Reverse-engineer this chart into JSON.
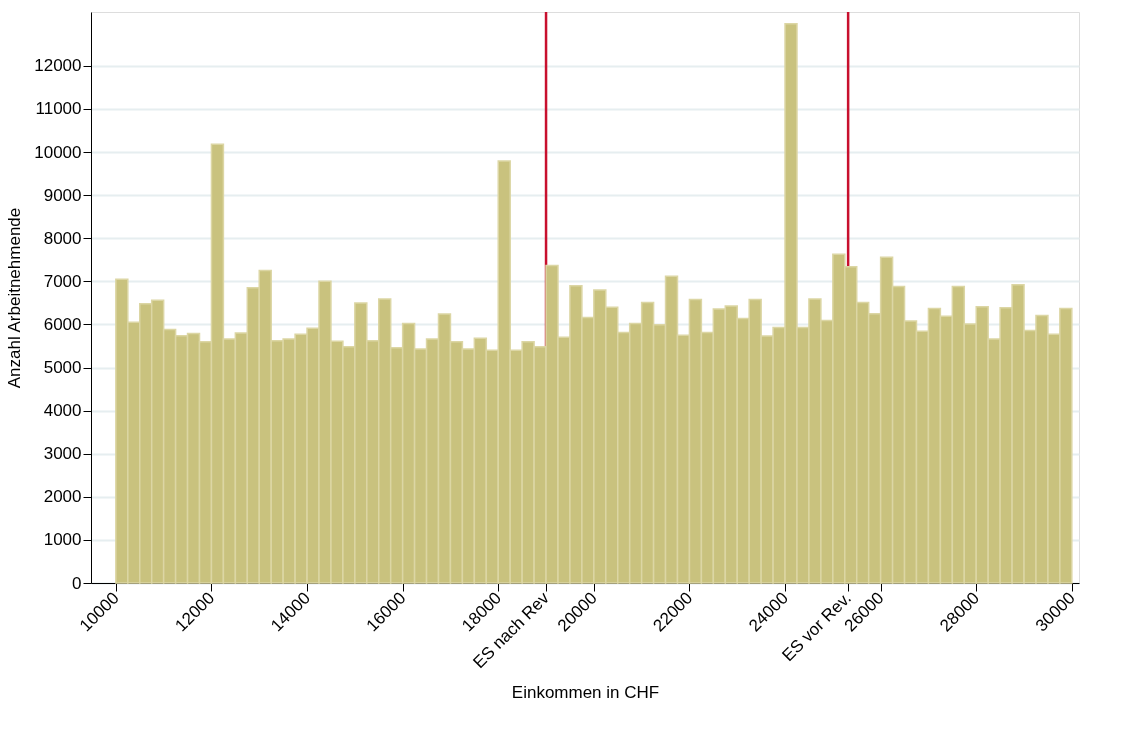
{
  "chart_data": {
    "type": "histogram",
    "xlabel": "Einkommen in CHF",
    "ylabel": "Anzahl Arbeitnehmende",
    "bins": [
      10000,
      10250,
      10500,
      10750,
      11000,
      11250,
      11500,
      11750,
      12000,
      12250,
      12500,
      12750,
      13000,
      13250,
      13500,
      13750,
      14000,
      14250,
      14500,
      14750,
      15000,
      15250,
      15500,
      15750,
      16000,
      16250,
      16500,
      16750,
      17000,
      17250,
      17500,
      17750,
      18000,
      18250,
      18500,
      18750,
      19000,
      19250,
      19500,
      19750,
      20000,
      20250,
      20500,
      20750,
      21000,
      21250,
      21500,
      21750,
      22000,
      22250,
      22500,
      22750,
      23000,
      23250,
      23500,
      23750,
      24000,
      24250,
      24500,
      24750,
      25000,
      25250,
      25500,
      25750,
      26000,
      26250,
      26500,
      26750,
      27000,
      27250,
      27500,
      27750,
      28000,
      28250,
      28500,
      28750,
      29000,
      29250,
      29500,
      29750,
      30000
    ],
    "values": [
      7050,
      6050,
      6480,
      6560,
      5880,
      5740,
      5790,
      5600,
      10180,
      5660,
      5800,
      6850,
      7250,
      5620,
      5660,
      5770,
      5910,
      7000,
      5610,
      5480,
      6500,
      5620,
      6590,
      5460,
      6020,
      5430,
      5660,
      6240,
      5600,
      5430,
      5680,
      5400,
      9790,
      5400,
      5600,
      5480,
      7370,
      5700,
      6900,
      6160,
      6800,
      6400,
      5810,
      6020,
      6510,
      5990,
      7120,
      5750,
      6580,
      5810,
      6360,
      6430,
      6140,
      6580,
      5730,
      5930,
      12980,
      5930,
      6590,
      6090,
      7630,
      7340,
      6510,
      6250,
      7560,
      6880,
      6080,
      5840,
      6370,
      6190,
      6880,
      6010,
      6410,
      5660,
      6390,
      6920,
      5860,
      6210,
      5770,
      6370
    ],
    "color": "#c9c27e",
    "xlim": [
      9480,
      30150
    ],
    "xticks": [
      10000,
      12000,
      14000,
      16000,
      18000,
      20000,
      22000,
      24000,
      26000,
      28000,
      30000
    ],
    "ylim": [
      0,
      13250
    ],
    "yticks": [
      0,
      1000,
      2000,
      3000,
      4000,
      5000,
      6000,
      7000,
      8000,
      9000,
      10000,
      11000,
      12000
    ],
    "grid": "y",
    "ref_lines": [
      {
        "axis": "x",
        "value": 19000,
        "label": "ES nach Rev",
        "color": "#c8102e"
      },
      {
        "axis": "x",
        "value": 25320,
        "label": "ES vor Rev.",
        "color": "#c8102e"
      }
    ]
  }
}
